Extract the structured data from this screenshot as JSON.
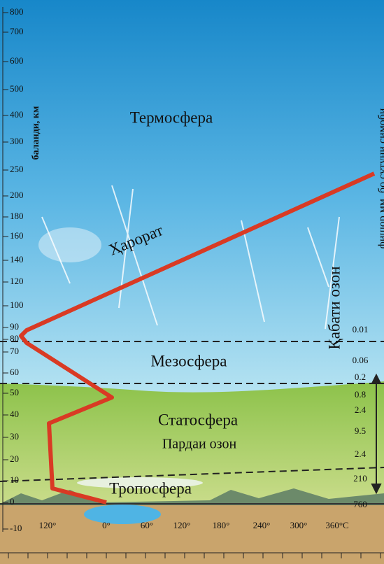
{
  "axis_label": "баланди, км",
  "right_label": "фишор мм. бо сутуни симоби",
  "altitude_ticks": [
    "800",
    "700",
    "600",
    "500",
    "400",
    "300",
    "250",
    "200",
    "180",
    "160",
    "140",
    "120",
    "100",
    "90",
    "80",
    "70",
    "60",
    "50",
    "40",
    "30",
    "20",
    "10",
    "0",
    "-10"
  ],
  "temperature_ticks": [
    "120°",
    "0°",
    "60°",
    "120°",
    "180°",
    "240°",
    "300°",
    "360°C"
  ],
  "pressure_labels": [
    "0.01",
    "0.06",
    "0.2",
    "0.8",
    "2.4",
    "9.5",
    "2.4",
    "210",
    "760"
  ],
  "layers": {
    "thermosphere": "Термосфера",
    "mesosphere": "Мезосфера",
    "stratosphere": "Статосфера",
    "troposphere": "Тропосфера"
  },
  "annotations": {
    "temperature": "Ҳарорат",
    "ozone_layer": "Қабати озон",
    "ozone_screen": "Пардаи озон"
  }
}
